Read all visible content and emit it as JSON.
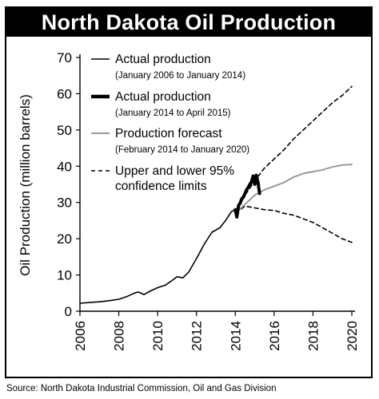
{
  "title": "North Dakota Oil Production",
  "source": "Source: North Dakota Industrial Commission, Oil and Gas Division",
  "chart_data": {
    "type": "line",
    "title": "North Dakota Oil Production",
    "ylabel": "Oil Production (million barrels)",
    "xlabel": "",
    "xlim": [
      2006,
      2020
    ],
    "ylim": [
      0,
      70
    ],
    "x_ticks": [
      "2006",
      "2008",
      "2010",
      "2012",
      "2014",
      "2016",
      "2018",
      "2020"
    ],
    "y_ticks": [
      "0",
      "10",
      "20",
      "30",
      "40",
      "50",
      "60",
      "70"
    ],
    "grid": false,
    "legend_position": "top-left",
    "colors": {
      "actual": "#000000",
      "forecast": "#999999",
      "limits": "#000000"
    },
    "legend": [
      {
        "label": "Actual production",
        "sublabel": "(January 2006 to January 2014)",
        "style": "thin-solid"
      },
      {
        "label": "Actual production",
        "sublabel": "(January 2014 to April 2015)",
        "style": "thick-solid"
      },
      {
        "label": "Production forecast",
        "sublabel": "(February 2014 to January 2020)",
        "style": "gray-solid"
      },
      {
        "label": "Upper and lower 95%",
        "sublabel": "confidence limits",
        "style": "dashed"
      }
    ],
    "series": [
      {
        "name": "Actual production (January 2006 to January 2014)",
        "points": [
          [
            2006.0,
            2.2
          ],
          [
            2006.5,
            2.4
          ],
          [
            2007.0,
            2.6
          ],
          [
            2007.5,
            2.9
          ],
          [
            2008.0,
            3.3
          ],
          [
            2008.4,
            4.0
          ],
          [
            2008.8,
            5.0
          ],
          [
            2009.0,
            5.3
          ],
          [
            2009.3,
            4.6
          ],
          [
            2009.6,
            5.5
          ],
          [
            2010.0,
            6.5
          ],
          [
            2010.4,
            7.2
          ],
          [
            2010.8,
            8.7
          ],
          [
            2011.0,
            9.5
          ],
          [
            2011.3,
            9.2
          ],
          [
            2011.6,
            10.8
          ],
          [
            2012.0,
            14.5
          ],
          [
            2012.4,
            18.5
          ],
          [
            2012.8,
            21.8
          ],
          [
            2013.2,
            23.0
          ],
          [
            2013.5,
            25.0
          ],
          [
            2013.8,
            27.5
          ],
          [
            2014.0,
            28.0
          ]
        ]
      },
      {
        "name": "Actual production (January 2014 to April 2015)",
        "points": [
          [
            2014.0,
            28.0
          ],
          [
            2014.08,
            26.0
          ],
          [
            2014.17,
            29.2
          ],
          [
            2014.25,
            29.8
          ],
          [
            2014.33,
            31.0
          ],
          [
            2014.42,
            31.5
          ],
          [
            2014.5,
            32.5
          ],
          [
            2014.58,
            33.5
          ],
          [
            2014.67,
            34.2
          ],
          [
            2014.75,
            35.0
          ],
          [
            2014.83,
            35.6
          ],
          [
            2014.92,
            37.3
          ],
          [
            2015.0,
            35.0
          ],
          [
            2015.08,
            37.5
          ],
          [
            2015.17,
            35.5
          ],
          [
            2015.25,
            32.5
          ]
        ]
      },
      {
        "name": "Production forecast (February 2014 to January 2020)",
        "points": [
          [
            2014.0,
            27.0
          ],
          [
            2014.5,
            29.5
          ],
          [
            2015.0,
            32.0
          ],
          [
            2015.5,
            33.5
          ],
          [
            2016.0,
            34.5
          ],
          [
            2016.5,
            35.5
          ],
          [
            2017.0,
            37.0
          ],
          [
            2017.5,
            38.0
          ],
          [
            2018.0,
            38.5
          ],
          [
            2018.5,
            39.0
          ],
          [
            2019.0,
            39.8
          ],
          [
            2019.5,
            40.3
          ],
          [
            2020.0,
            40.5
          ]
        ]
      },
      {
        "name": "Upper 95% confidence limit",
        "points": [
          [
            2014.0,
            27.0
          ],
          [
            2014.5,
            32.0
          ],
          [
            2015.0,
            36.0
          ],
          [
            2015.5,
            39.5
          ],
          [
            2016.0,
            42.0
          ],
          [
            2016.5,
            44.5
          ],
          [
            2017.0,
            47.5
          ],
          [
            2017.5,
            50.0
          ],
          [
            2018.0,
            52.5
          ],
          [
            2018.5,
            55.0
          ],
          [
            2019.0,
            57.5
          ],
          [
            2019.5,
            59.5
          ],
          [
            2020.0,
            62.0
          ]
        ]
      },
      {
        "name": "Lower 95% confidence limit",
        "points": [
          [
            2014.0,
            27.0
          ],
          [
            2014.5,
            29.0
          ],
          [
            2015.0,
            28.5
          ],
          [
            2015.5,
            28.0
          ],
          [
            2016.0,
            27.8
          ],
          [
            2016.5,
            27.0
          ],
          [
            2017.0,
            26.5
          ],
          [
            2017.5,
            25.5
          ],
          [
            2018.0,
            24.5
          ],
          [
            2018.5,
            23.0
          ],
          [
            2019.0,
            21.5
          ],
          [
            2019.5,
            20.0
          ],
          [
            2020.0,
            19.0
          ]
        ]
      }
    ]
  }
}
